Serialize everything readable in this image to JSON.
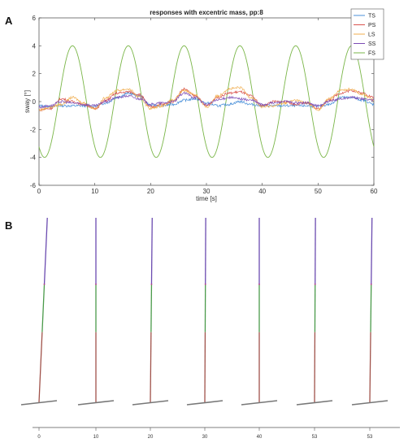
{
  "panels": {
    "a": "A",
    "b": "B"
  },
  "chart_data": [
    {
      "type": "line",
      "title": "responses with excentric mass, pp:8",
      "xlabel": "time [s]",
      "ylabel": "sway [°]",
      "xlim": [
        0,
        60
      ],
      "ylim": [
        -6,
        6
      ],
      "xticks": [
        0,
        10,
        20,
        30,
        40,
        50,
        60
      ],
      "yticks": [
        -6,
        -4,
        -2,
        0,
        2,
        4,
        6
      ],
      "legend_position": "top-right",
      "series": [
        {
          "name": "TS",
          "color": "#4a90d9",
          "x": [
            0,
            2,
            4,
            6,
            8,
            10,
            12,
            14,
            16,
            18,
            20,
            22,
            24,
            26,
            28,
            30,
            32,
            34,
            36,
            38,
            40,
            42,
            44,
            46,
            48,
            50,
            52,
            54,
            56,
            58,
            60
          ],
          "y": [
            -0.3,
            -0.35,
            -0.3,
            -0.3,
            -0.3,
            -0.35,
            -0.1,
            0.3,
            0.6,
            0.4,
            -0.25,
            -0.3,
            -0.2,
            0.1,
            0.2,
            -0.1,
            -0.3,
            -0.2,
            0.0,
            -0.2,
            -0.3,
            -0.3,
            -0.3,
            -0.3,
            -0.3,
            -0.35,
            -0.2,
            0.3,
            0.3,
            0.1,
            -0.2
          ]
        },
        {
          "name": "PS",
          "color": "#d9534f",
          "x": [
            0,
            2,
            4,
            6,
            8,
            10,
            12,
            14,
            16,
            18,
            20,
            22,
            24,
            26,
            28,
            30,
            32,
            34,
            36,
            38,
            40,
            42,
            44,
            46,
            48,
            50,
            52,
            54,
            56,
            58,
            60
          ],
          "y": [
            -0.6,
            -0.5,
            0.2,
            0.0,
            -0.2,
            -0.5,
            0.1,
            0.6,
            0.7,
            0.5,
            -0.4,
            -0.2,
            0.0,
            0.9,
            0.4,
            -0.3,
            0.3,
            0.6,
            0.7,
            0.4,
            -0.3,
            0.0,
            0.0,
            -0.2,
            -0.1,
            -0.5,
            0.1,
            0.6,
            0.8,
            0.6,
            0.3
          ]
        },
        {
          "name": "LS",
          "color": "#f0ad4e",
          "x": [
            0,
            2,
            4,
            6,
            8,
            10,
            12,
            14,
            16,
            18,
            20,
            22,
            24,
            26,
            28,
            30,
            32,
            34,
            36,
            38,
            40,
            42,
            44,
            46,
            48,
            50,
            52,
            54,
            56,
            58,
            60
          ],
          "y": [
            -0.6,
            -0.4,
            -0.2,
            0.3,
            -0.1,
            -0.5,
            0.3,
            0.8,
            0.9,
            0.3,
            -0.5,
            -0.3,
            0.1,
            0.8,
            0.5,
            -0.4,
            0.4,
            0.9,
            1.0,
            0.3,
            -0.4,
            -0.3,
            -0.1,
            0.1,
            -0.1,
            -0.6,
            0.2,
            0.8,
            0.9,
            0.5,
            0.1
          ]
        },
        {
          "name": "SS",
          "color": "#7b4bb5",
          "x": [
            0,
            2,
            4,
            6,
            8,
            10,
            12,
            14,
            16,
            18,
            20,
            22,
            24,
            26,
            28,
            30,
            32,
            34,
            36,
            38,
            40,
            42,
            44,
            46,
            48,
            50,
            52,
            54,
            56,
            58,
            60
          ],
          "y": [
            -0.4,
            -0.3,
            0.0,
            -0.1,
            -0.2,
            -0.3,
            0.0,
            0.3,
            0.4,
            0.2,
            -0.2,
            -0.1,
            0.0,
            0.6,
            0.3,
            -0.2,
            0.1,
            0.3,
            0.2,
            0.1,
            -0.2,
            -0.1,
            0.0,
            -0.1,
            -0.1,
            -0.3,
            0.0,
            0.2,
            0.3,
            0.2,
            0.1
          ]
        },
        {
          "name": "FS",
          "color": "#7ab648",
          "x": [
            0,
            2,
            4,
            6,
            8,
            10,
            12,
            14,
            16,
            18,
            20,
            22,
            24,
            26,
            28,
            30,
            32,
            34,
            36,
            38,
            40,
            42,
            44,
            46,
            48,
            50,
            52,
            54,
            56,
            58,
            60
          ],
          "y": [
            -3.24,
            -3.24,
            1.24,
            4.0,
            1.24,
            -3.24,
            -3.24,
            1.24,
            4.0,
            1.24,
            -3.24,
            -3.24,
            1.24,
            4.0,
            1.24,
            -3.24,
            -3.24,
            1.24,
            4.0,
            1.24,
            -3.24,
            -3.24,
            1.24,
            4.0,
            1.24,
            -3.24,
            -3.24,
            1.24,
            4.0,
            1.24,
            -3.24
          ]
        }
      ]
    },
    {
      "type": "diagram",
      "xticks": [
        "0",
        "10",
        "20",
        "30",
        "40",
        "53",
        "53"
      ],
      "figures": [
        {
          "lean": -0.045
        },
        {
          "lean": 0.0
        },
        {
          "lean": -0.01
        },
        {
          "lean": -0.005
        },
        {
          "lean": 0.0
        },
        {
          "lean": -0.005
        },
        {
          "lean": -0.012
        }
      ]
    }
  ]
}
